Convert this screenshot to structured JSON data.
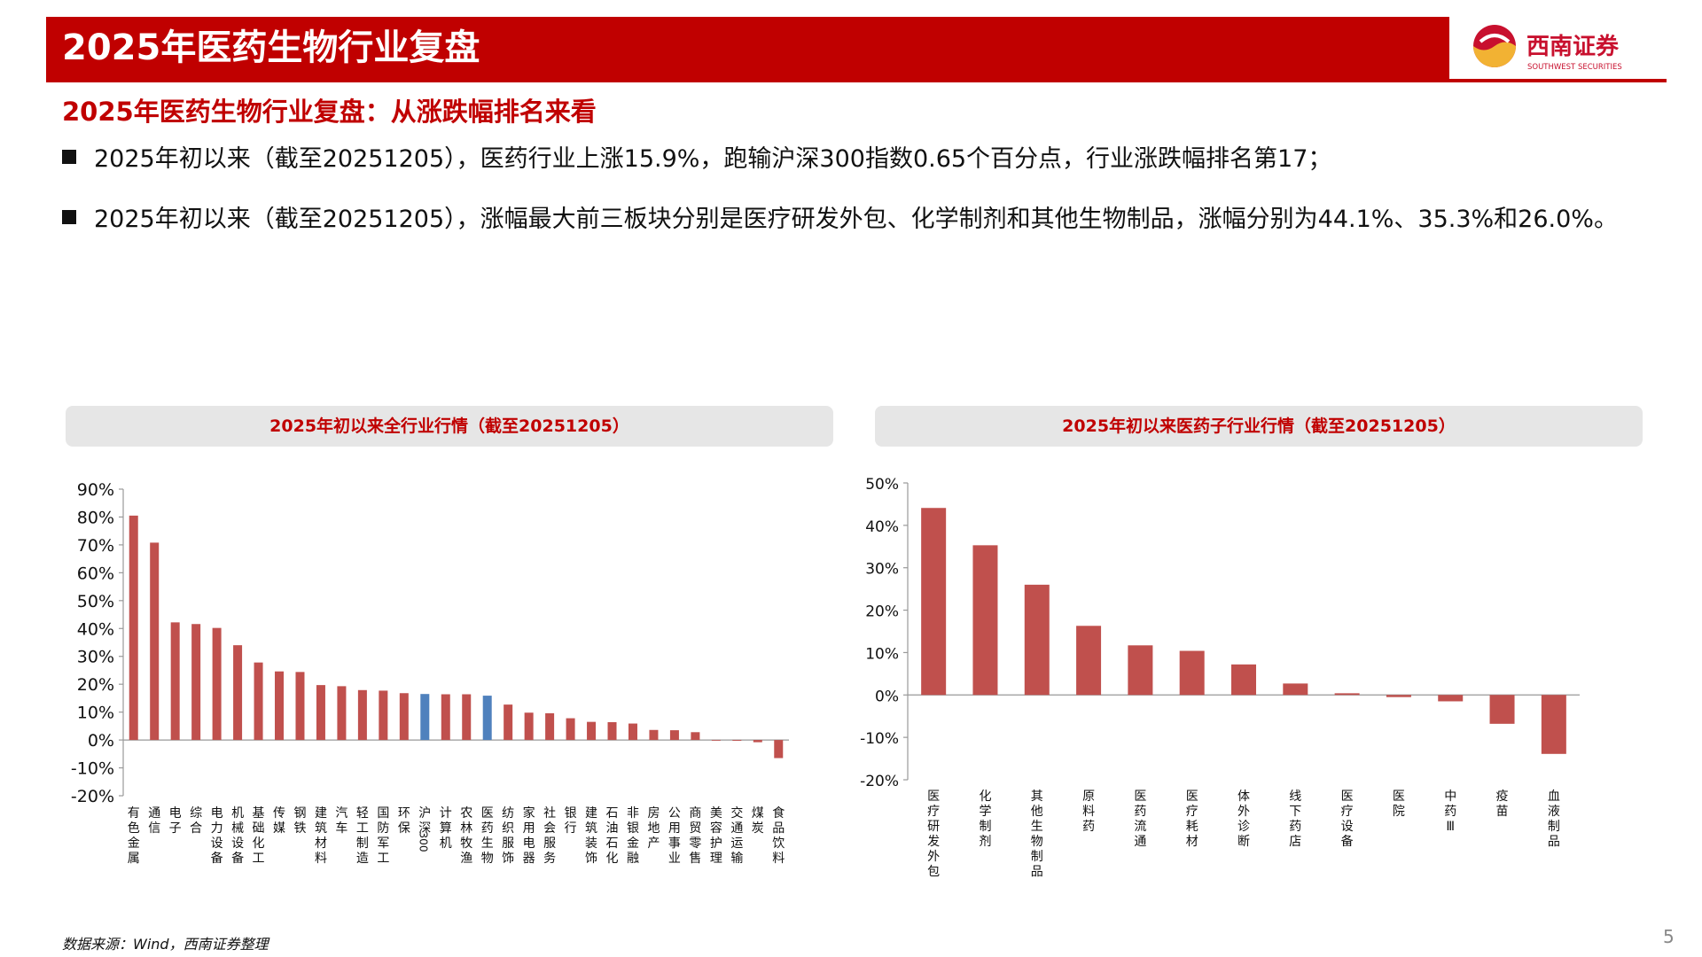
{
  "header": {
    "title": "2025年医药生物行业复盘",
    "logo_cn": "西南证券",
    "logo_en": "SOUTHWEST SECURITIES"
  },
  "subtitle": "2025年医药生物行业复盘：从涨跌幅排名来看",
  "bullets": [
    "2025年初以来（截至20251205），医药行业上涨15.9%，跑输沪深300指数0.65个百分点，行业涨跌幅排名第17；",
    "2025年初以来（截至20251205），涨幅最大前三板块分别是医疗研发外包、化学制剂和其他生物制品，涨幅分别为44.1%、35.3%和26.0%。"
  ],
  "footer": {
    "source": "数据来源：Wind，西南证券整理",
    "page": "5"
  },
  "colors": {
    "brand_red": "#c00000",
    "bar_red": "#c0504d",
    "bar_blue": "#4f81bd"
  },
  "chart_data": [
    {
      "type": "bar",
      "title": "2025年初以来全行业行情（截至20251205）",
      "categories": [
        "有色金属",
        "通信",
        "电子",
        "综合",
        "电力设备",
        "机械设备",
        "基础化工",
        "传媒",
        "钢铁",
        "建筑材料",
        "汽车",
        "轻工制造",
        "国防军工",
        "环保",
        "沪深300",
        "计算机",
        "农林牧渔",
        "医药生物",
        "纺织服饰",
        "家用电器",
        "社会服务",
        "银行",
        "建筑装饰",
        "石油石化",
        "非银金融",
        "房地产",
        "公用事业",
        "商贸零售",
        "美容护理",
        "交通运输",
        "煤炭",
        "食品饮料"
      ],
      "values": [
        80.5,
        70.8,
        42.2,
        41.6,
        40.2,
        34.0,
        27.8,
        24.6,
        24.4,
        19.7,
        19.3,
        17.9,
        17.7,
        16.8,
        16.5,
        16.4,
        16.4,
        15.9,
        12.7,
        9.8,
        9.6,
        7.8,
        6.5,
        6.4,
        5.9,
        3.6,
        3.5,
        2.8,
        -0.1,
        -0.3,
        -0.8,
        -6.5
      ],
      "highlight": [
        "沪深300",
        "医药生物"
      ],
      "ylim": [
        -20,
        90
      ],
      "yticks": [
        "90%",
        "80%",
        "70%",
        "60%",
        "50%",
        "40%",
        "30%",
        "20%",
        "10%",
        "0%",
        "-10%",
        "-20%"
      ],
      "grid": false
    },
    {
      "type": "bar",
      "title": "2025年初以来医药子行业行情（截至20251205）",
      "categories": [
        "医疗研发外包",
        "化学制剂",
        "其他生物制品",
        "原料药",
        "医药流通",
        "医疗耗材",
        "体外诊断",
        "线下药店",
        "医疗设备",
        "医院",
        "中药Ⅲ",
        "疫苗",
        "血液制品"
      ],
      "values": [
        44.1,
        35.3,
        26.0,
        16.3,
        11.7,
        10.4,
        7.2,
        2.7,
        0.4,
        -0.5,
        -1.5,
        -6.8,
        -13.9
      ],
      "ylim": [
        -20,
        50
      ],
      "yticks": [
        "50%",
        "40%",
        "30%",
        "20%",
        "10%",
        "0%",
        "-10%",
        "-20%"
      ],
      "grid": false
    }
  ]
}
